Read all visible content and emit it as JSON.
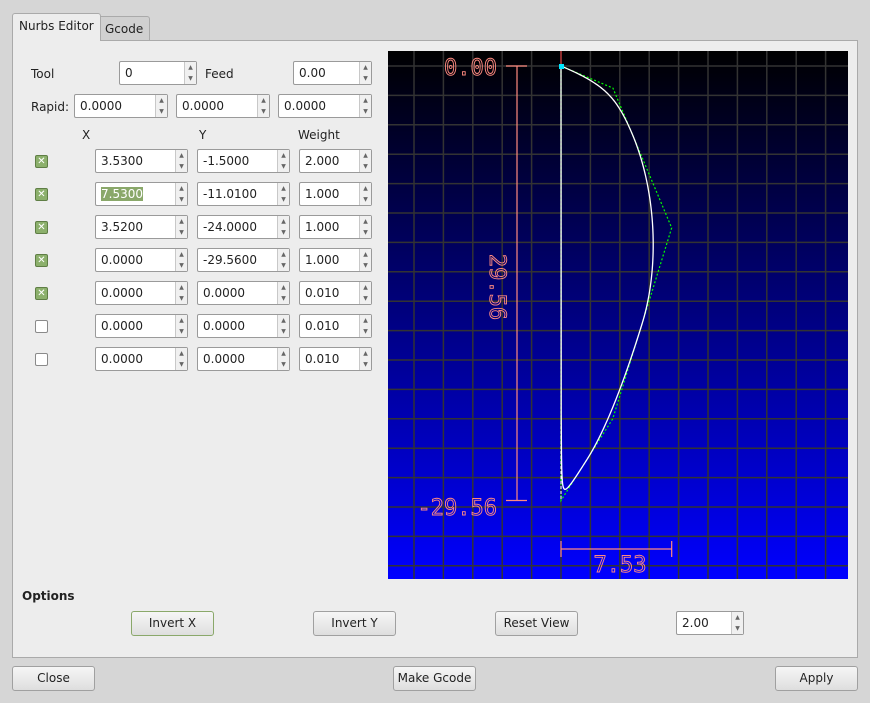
{
  "tabs": [
    {
      "label": "Nurbs Editor",
      "active": true
    },
    {
      "label": "Gcode",
      "active": false
    }
  ],
  "tool": {
    "label": "Tool",
    "value": "0"
  },
  "feed": {
    "label": "Feed",
    "value": "0.00"
  },
  "rapid": {
    "label": "Rapid:",
    "values": [
      "0.0000",
      "0.0000",
      "0.0000"
    ]
  },
  "columns": {
    "x": "X",
    "y": "Y",
    "weight": "Weight"
  },
  "points": [
    {
      "enabled": true,
      "x": "3.5300",
      "y": "-1.5000",
      "w": "2.000"
    },
    {
      "enabled": true,
      "x": "7.5300",
      "y": "-11.0100",
      "w": "1.000",
      "selected": true
    },
    {
      "enabled": true,
      "x": "3.5200",
      "y": "-24.0000",
      "w": "1.000"
    },
    {
      "enabled": true,
      "x": "0.0000",
      "y": "-29.5600",
      "w": "1.000"
    },
    {
      "enabled": true,
      "x": "0.0000",
      "y": "0.0000",
      "w": "0.010"
    },
    {
      "enabled": false,
      "x": "0.0000",
      "y": "0.0000",
      "w": "0.010"
    },
    {
      "enabled": false,
      "x": "0.0000",
      "y": "0.0000",
      "w": "0.010"
    }
  ],
  "preview": {
    "top_label": "0.00",
    "bottom_label": "-29.56",
    "height_label": "29.56",
    "width_label": "7.53",
    "colors": {
      "bg_top": "#000000",
      "bg_bottom": "#0000ff",
      "grid": "#333333",
      "dimension": "#ff8a80",
      "curve": "#ffffff",
      "control": "#00ff00"
    }
  },
  "options": {
    "label": "Options",
    "invert_x": "Invert X",
    "invert_y": "Invert Y",
    "reset_view": "Reset View",
    "scale": "2.00"
  },
  "footer": {
    "close": "Close",
    "make_gcode": "Make Gcode",
    "apply": "Apply"
  }
}
